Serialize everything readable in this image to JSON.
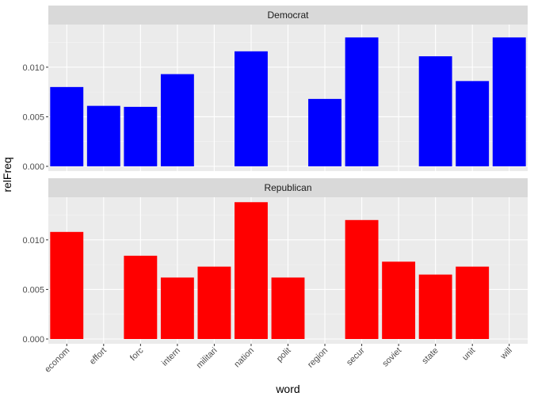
{
  "chart_data": {
    "type": "bar",
    "facet_by": "party",
    "xlabel": "word",
    "ylabel": "relFreq",
    "categories": [
      "econom",
      "effort",
      "forc",
      "intern",
      "militari",
      "nation",
      "polit",
      "region",
      "secur",
      "soviet",
      "state",
      "unit",
      "will"
    ],
    "ylim": [
      0,
      0.0143
    ],
    "yticks": [
      0.0,
      0.005,
      0.01
    ],
    "ytick_labels": [
      "0.000",
      "0.005",
      "0.010"
    ],
    "grid": true,
    "panels": [
      {
        "name": "Democrat",
        "color": "#0000FF",
        "values": [
          0.008,
          0.0061,
          0.006,
          0.0093,
          null,
          0.0116,
          null,
          0.0068,
          0.013,
          null,
          0.0111,
          0.0086,
          0.013
        ]
      },
      {
        "name": "Republican",
        "color": "#FF0000",
        "values": [
          0.0108,
          null,
          0.0084,
          0.0062,
          0.0073,
          0.0138,
          0.0062,
          null,
          0.012,
          0.0078,
          0.0065,
          0.0073,
          null
        ]
      }
    ]
  }
}
